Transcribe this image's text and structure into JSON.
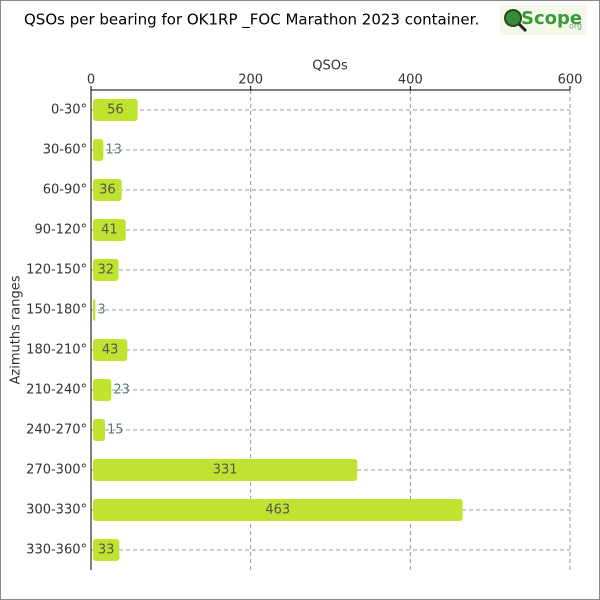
{
  "chart_data": {
    "type": "hbar",
    "title": "QSOs per bearing for OK1RP _FOC Marathon 2023 container.",
    "logo": "Scope",
    "logo_suffix": "org",
    "x_label": "QSOs",
    "y_label": "Azimuths ranges",
    "categories": [
      "0-30°",
      "30-60°",
      "60-90°",
      "90-120°",
      "120-150°",
      "150-180°",
      "180-210°",
      "210-240°",
      "240-270°",
      "270-300°",
      "300-330°",
      "330-360°"
    ],
    "values": [
      56,
      13,
      36,
      41,
      32,
      3,
      43,
      23,
      15,
      331,
      463,
      33
    ],
    "color": "#bfe32f",
    "xlim": [
      0,
      600
    ],
    "xticks": [
      0,
      200,
      400,
      600
    ],
    "grid": true
  }
}
